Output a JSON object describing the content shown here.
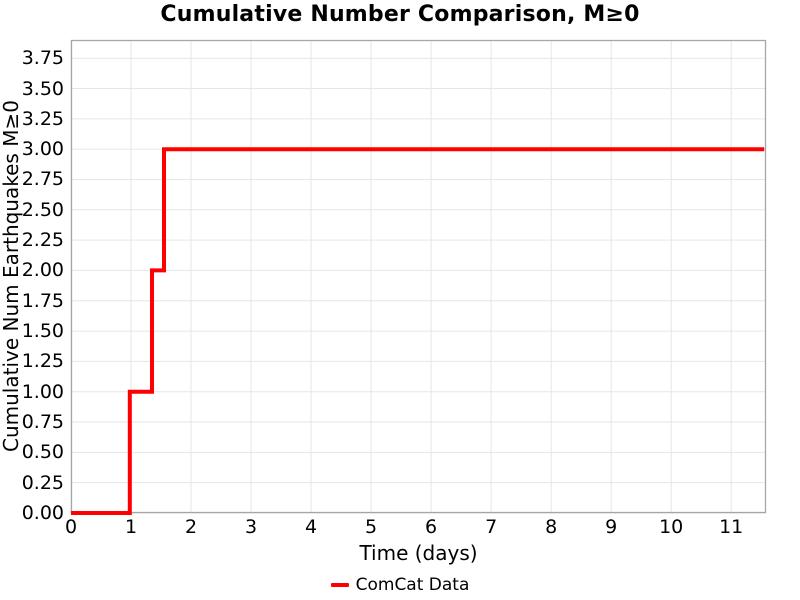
{
  "chart_data": {
    "type": "line",
    "line_style": "step-post",
    "title": "Cumulative Number Comparison, M≥0",
    "xlabel": "Time (days)",
    "ylabel": "Cumulative Num Earthquakes M≥0",
    "xlim": [
      0,
      11.58
    ],
    "ylim": [
      0,
      3.9
    ],
    "xticks": [
      0,
      1,
      2,
      3,
      4,
      5,
      6,
      7,
      8,
      9,
      10,
      11
    ],
    "yticks": [
      "0.00",
      "0.25",
      "0.50",
      "0.75",
      "1.00",
      "1.25",
      "1.50",
      "1.75",
      "2.00",
      "2.25",
      "2.50",
      "2.75",
      "3.00",
      "3.25",
      "3.50",
      "3.75"
    ],
    "grid": true,
    "legend_position": "bottom-center",
    "series": [
      {
        "name": "ComCat Data",
        "color": "#ff0000",
        "line_width": 4,
        "event_times_days": [
          0.98,
          1.35,
          1.55
        ],
        "final_cumulative_count": 3,
        "points": [
          [
            0,
            0
          ],
          [
            0.98,
            0
          ],
          [
            0.98,
            1
          ],
          [
            1.35,
            1
          ],
          [
            1.35,
            2
          ],
          [
            1.55,
            2
          ],
          [
            1.55,
            3
          ],
          [
            11.55,
            3
          ]
        ]
      }
    ],
    "colors": {
      "line": "#ff0000",
      "grid": "#e6e6e6",
      "spine": "#a6a6a6",
      "text": "#000000",
      "background": "#ffffff"
    }
  }
}
